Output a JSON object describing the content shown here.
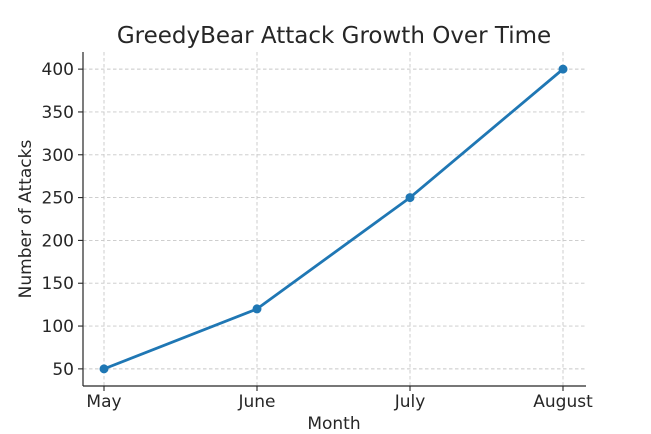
{
  "chart_data": {
    "type": "line",
    "title": "GreedyBear Attack Growth Over Time",
    "xlabel": "Month",
    "ylabel": "Number of Attacks",
    "categories": [
      "May",
      "June",
      "July",
      "August"
    ],
    "series": [
      {
        "values": [
          50,
          120,
          250,
          400
        ]
      }
    ],
    "yticks": [
      50,
      100,
      150,
      200,
      250,
      300,
      350,
      400
    ],
    "ylim": [
      30,
      420
    ],
    "grid": true,
    "line_color": "#1f77b4",
    "marker": "circle"
  }
}
